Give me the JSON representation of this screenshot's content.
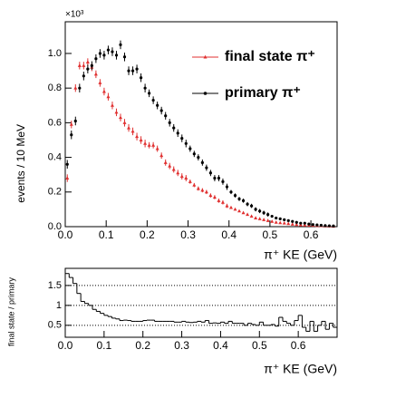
{
  "chart_data": [
    {
      "type": "scatter",
      "ylabel": "events / 10 MeV",
      "xlabel": "π⁺ KE (GeV)",
      "y_multiplier": "×10³",
      "xlim": [
        0,
        0.664
      ],
      "ylim": [
        0,
        1.183
      ],
      "xticks": [
        {
          "value": 0,
          "label": "0.0"
        },
        0.1,
        0.2,
        0.3,
        0.4,
        0.5,
        0.6
      ],
      "yticks": [
        {
          "value": 0,
          "label": "0.0"
        },
        0.2,
        0.4,
        0.6,
        0.8,
        {
          "value": 1,
          "label": "1.0"
        }
      ],
      "legend": "upper right",
      "x": [
        0.005,
        0.015,
        0.025,
        0.035,
        0.045,
        0.055,
        0.065,
        0.075,
        0.085,
        0.095,
        0.105,
        0.115,
        0.125,
        0.135,
        0.145,
        0.155,
        0.165,
        0.175,
        0.185,
        0.195,
        0.205,
        0.215,
        0.225,
        0.235,
        0.245,
        0.255,
        0.265,
        0.275,
        0.285,
        0.295,
        0.305,
        0.315,
        0.325,
        0.335,
        0.345,
        0.355,
        0.365,
        0.375,
        0.385,
        0.395,
        0.405,
        0.415,
        0.425,
        0.435,
        0.445,
        0.455,
        0.465,
        0.475,
        0.485,
        0.495,
        0.505,
        0.515,
        0.525,
        0.535,
        0.545,
        0.555,
        0.565,
        0.575,
        0.585,
        0.595,
        0.605,
        0.615,
        0.625,
        0.635,
        0.645,
        0.655
      ],
      "series": [
        {
          "name": "final state π⁺",
          "color": "#e03030",
          "marker": "triangle",
          "values": [
            0.28,
            0.59,
            0.8,
            0.93,
            0.93,
            0.95,
            0.92,
            0.88,
            0.83,
            0.78,
            0.75,
            0.7,
            0.66,
            0.63,
            0.6,
            0.57,
            0.55,
            0.52,
            0.5,
            0.48,
            0.47,
            0.47,
            0.45,
            0.41,
            0.37,
            0.35,
            0.33,
            0.31,
            0.29,
            0.28,
            0.26,
            0.24,
            0.22,
            0.21,
            0.2,
            0.18,
            0.17,
            0.15,
            0.14,
            0.12,
            0.11,
            0.1,
            0.09,
            0.08,
            0.07,
            0.06,
            0.05,
            0.045,
            0.04,
            0.035,
            0.03,
            0.025,
            0.022,
            0.02,
            0.017,
            0.014,
            0.012,
            0.01,
            0.009,
            0.008,
            0.007,
            0.006,
            0.005,
            0.004,
            0.003,
            0.002
          ],
          "errors": [
            0.022,
            0.022,
            0.022,
            0.022,
            0.022,
            0.022,
            0.022,
            0.022,
            0.022,
            0.022,
            0.022,
            0.022,
            0.022,
            0.022,
            0.022,
            0.022,
            0.022,
            0.022,
            0.022,
            0.022,
            0.018,
            0.018,
            0.018,
            0.018,
            0.018,
            0.018,
            0.018,
            0.018,
            0.018,
            0.018,
            0.012,
            0.012,
            0.012,
            0.012,
            0.012,
            0.012,
            0.012,
            0.012,
            0.012,
            0.012,
            0.006,
            0.006,
            0.006,
            0.006,
            0.006,
            0.006,
            0.006,
            0.006,
            0.006,
            0.006,
            0.006,
            0.006,
            0.006,
            0.006,
            0.006,
            0.006,
            0.006,
            0.006,
            0.006,
            0.006,
            0.006,
            0.006,
            0.006,
            0.006,
            0.006,
            0.006
          ]
        },
        {
          "name": "primary π⁺",
          "color": "#000000",
          "marker": "circle",
          "values": [
            0.36,
            0.53,
            0.61,
            0.8,
            0.87,
            0.91,
            0.93,
            0.97,
            1.0,
            0.99,
            1.02,
            1.01,
            0.99,
            1.05,
            0.98,
            0.9,
            0.9,
            0.91,
            0.86,
            0.8,
            0.77,
            0.73,
            0.7,
            0.67,
            0.64,
            0.6,
            0.57,
            0.54,
            0.51,
            0.48,
            0.45,
            0.42,
            0.4,
            0.37,
            0.34,
            0.31,
            0.28,
            0.28,
            0.26,
            0.23,
            0.2,
            0.18,
            0.16,
            0.15,
            0.13,
            0.12,
            0.1,
            0.09,
            0.08,
            0.07,
            0.06,
            0.05,
            0.045,
            0.04,
            0.035,
            0.03,
            0.025,
            0.02,
            0.02,
            0.015,
            0.012,
            0.01,
            0.008,
            0.006,
            0.005,
            0.004
          ],
          "errors": [
            0.025,
            0.025,
            0.025,
            0.025,
            0.025,
            0.025,
            0.025,
            0.025,
            0.025,
            0.025,
            0.025,
            0.025,
            0.025,
            0.025,
            0.025,
            0.025,
            0.025,
            0.025,
            0.025,
            0.025,
            0.022,
            0.022,
            0.022,
            0.022,
            0.022,
            0.022,
            0.022,
            0.022,
            0.022,
            0.022,
            0.018,
            0.018,
            0.018,
            0.018,
            0.018,
            0.018,
            0.018,
            0.018,
            0.018,
            0.018,
            0.012,
            0.012,
            0.012,
            0.012,
            0.012,
            0.012,
            0.012,
            0.012,
            0.012,
            0.012,
            0.006,
            0.006,
            0.006,
            0.006,
            0.006,
            0.006,
            0.006,
            0.006,
            0.006,
            0.006,
            0.006,
            0.006,
            0.006,
            0.006,
            0.006,
            0.006
          ]
        }
      ]
    },
    {
      "type": "histogram",
      "ylabel": "final state / primary",
      "xlabel": "π⁺ KE (GeV)",
      "color": "#000000",
      "xlim": [
        0,
        0.7
      ],
      "ylim": [
        0.2,
        1.93
      ],
      "grid": true,
      "xticks": [
        {
          "value": 0,
          "label": "0.0"
        },
        0.1,
        0.2,
        0.3,
        0.4,
        0.5,
        0.6
      ],
      "yticks": [
        0.5,
        1,
        1.5
      ],
      "bins": [
        0,
        0.01,
        0.02,
        0.03,
        0.04,
        0.05,
        0.06,
        0.07,
        0.08,
        0.09,
        0.1,
        0.11,
        0.12,
        0.13,
        0.14,
        0.15,
        0.16,
        0.17,
        0.18,
        0.19,
        0.2,
        0.21,
        0.22,
        0.23,
        0.24,
        0.25,
        0.26,
        0.27,
        0.28,
        0.29,
        0.3,
        0.31,
        0.32,
        0.33,
        0.34,
        0.35,
        0.36,
        0.37,
        0.38,
        0.39,
        0.4,
        0.41,
        0.42,
        0.43,
        0.44,
        0.45,
        0.46,
        0.47,
        0.48,
        0.49,
        0.5,
        0.51,
        0.52,
        0.53,
        0.54,
        0.55,
        0.56,
        0.57,
        0.58,
        0.59,
        0.6,
        0.61,
        0.62,
        0.63,
        0.64,
        0.65,
        0.66,
        0.67,
        0.68,
        0.69,
        0.7
      ],
      "values": [
        1.8,
        1.7,
        1.55,
        1.3,
        1.1,
        1.05,
        1.0,
        0.9,
        0.85,
        0.8,
        0.75,
        0.72,
        0.68,
        0.66,
        0.62,
        0.63,
        0.62,
        0.6,
        0.6,
        0.6,
        0.62,
        0.63,
        0.63,
        0.6,
        0.6,
        0.6,
        0.6,
        0.6,
        0.58,
        0.58,
        0.6,
        0.58,
        0.57,
        0.58,
        0.6,
        0.58,
        0.62,
        0.55,
        0.56,
        0.55,
        0.58,
        0.55,
        0.6,
        0.55,
        0.55,
        0.55,
        0.5,
        0.55,
        0.52,
        0.5,
        0.58,
        0.5,
        0.5,
        0.52,
        0.48,
        0.7,
        0.6,
        0.55,
        0.5,
        0.62,
        0.75,
        0.45,
        0.35,
        0.6,
        0.35,
        0.5,
        0.6,
        0.4,
        0.55,
        0.45
      ]
    }
  ]
}
